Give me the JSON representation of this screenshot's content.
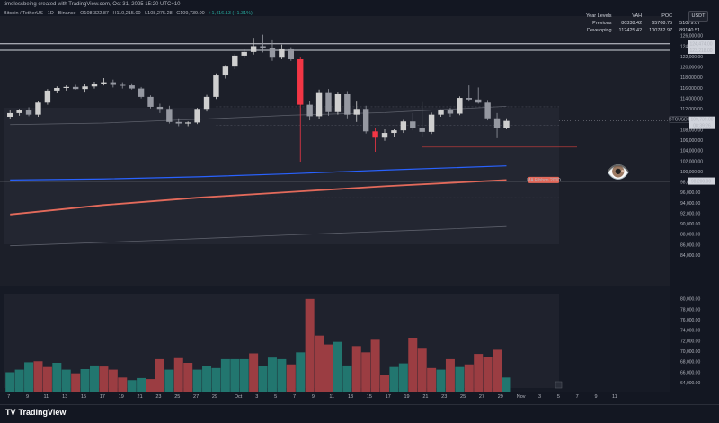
{
  "header": {
    "text": "timelessbeing created with TradingView.com, Oct 31, 2025 15:20 UTC+10"
  },
  "legend": {
    "symbol": "Bitcoin / TetherUS · 1D · Binance",
    "open": "O108,322.87",
    "high": "H110,215.00",
    "low": "L108,275.28",
    "close": "C109,739.00",
    "change": "+1,416.13 (+1.31%)"
  },
  "year_levels": {
    "headers": [
      "Year Levels",
      "VAH",
      "POC",
      "VAL"
    ],
    "rows": [
      [
        "Previous",
        "80338.42",
        "65708.75",
        "51079.07"
      ],
      [
        "Developing",
        "112425.42",
        "100782.97",
        "89140.51"
      ]
    ]
  },
  "currency_button": "USDT",
  "price_axis": {
    "ticks": [
      "126,000.00",
      "124,000.00",
      "122,000.00",
      "120,000.00",
      "118,000.00",
      "116,000.00",
      "114,000.00",
      "112,000.00",
      "110,000.00",
      "108,000.00",
      "106,000.00",
      "104,000.00",
      "102,000.00",
      "100,000.00",
      "98,000.00",
      "96,000.00",
      "94,000.00",
      "92,000.00",
      "90,000.00",
      "88,000.00",
      "86,000.00",
      "84,000.00"
    ],
    "level_labels": [
      {
        "text": "124,474.00",
        "price": 124474
      },
      {
        "text": "123,218.00",
        "price": 123218
      },
      {
        "text": "98,200.00",
        "price": 98200
      }
    ],
    "last_price_label": "BTCUSDT",
    "last_price_value": "109,739.00",
    "countdown": "08:39:26"
  },
  "volume_axis": {
    "ticks": [
      "80,000.00",
      "78,000.00",
      "76,000.00",
      "74,000.00",
      "72,000.00",
      "70,000.00",
      "68,000.00",
      "66,000.00",
      "64,000.00"
    ]
  },
  "x_axis": {
    "labels": [
      "7",
      "9",
      "11",
      "13",
      "15",
      "17",
      "19",
      "21",
      "23",
      "25",
      "27",
      "29",
      "Oct",
      "3",
      "5",
      "7",
      "9",
      "11",
      "13",
      "15",
      "17",
      "19",
      "21",
      "23",
      "25",
      "27",
      "29",
      "Nov",
      "3",
      "5",
      "7",
      "9",
      "11"
    ]
  },
  "ma_label": "MA Ribbon 200D",
  "colors": {
    "up": "#cfcfcf",
    "down_highlight": "#f23645",
    "vol_up": "#22766f",
    "vol_down": "#9b3d42",
    "ema": "#2962ff",
    "ma200": "#e36a5b"
  },
  "chart_data": {
    "type": "candlestick",
    "title": "Bitcoin / TetherUS · 1D · Binance",
    "ylim": [
      83000,
      127000
    ],
    "candles": [
      {
        "o": 110500,
        "h": 111700,
        "l": 110000,
        "c": 111200
      },
      {
        "o": 111200,
        "h": 112000,
        "l": 110700,
        "c": 111700
      },
      {
        "o": 111700,
        "h": 112300,
        "l": 110600,
        "c": 110900
      },
      {
        "o": 110900,
        "h": 113500,
        "l": 110500,
        "c": 113200
      },
      {
        "o": 113200,
        "h": 115800,
        "l": 112800,
        "c": 115500
      },
      {
        "o": 115500,
        "h": 116300,
        "l": 115000,
        "c": 116000
      },
      {
        "o": 116000,
        "h": 116500,
        "l": 115500,
        "c": 116200
      },
      {
        "o": 116200,
        "h": 116600,
        "l": 115700,
        "c": 115800
      },
      {
        "o": 115800,
        "h": 116700,
        "l": 115300,
        "c": 116300
      },
      {
        "o": 116300,
        "h": 117200,
        "l": 115900,
        "c": 116800
      },
      {
        "o": 116800,
        "h": 117900,
        "l": 116500,
        "c": 117100
      },
      {
        "o": 117100,
        "h": 117600,
        "l": 116100,
        "c": 116600
      },
      {
        "o": 116600,
        "h": 117100,
        "l": 115900,
        "c": 116500
      },
      {
        "o": 116500,
        "h": 116900,
        "l": 115700,
        "c": 115900
      },
      {
        "o": 115900,
        "h": 116200,
        "l": 114000,
        "c": 114300
      },
      {
        "o": 114300,
        "h": 114600,
        "l": 112100,
        "c": 112400
      },
      {
        "o": 112400,
        "h": 113000,
        "l": 111200,
        "c": 112000
      },
      {
        "o": 112000,
        "h": 112600,
        "l": 109200,
        "c": 109500
      },
      {
        "o": 109500,
        "h": 110200,
        "l": 108700,
        "c": 109200
      },
      {
        "o": 109200,
        "h": 109600,
        "l": 108700,
        "c": 109400
      },
      {
        "o": 109400,
        "h": 112200,
        "l": 109100,
        "c": 112000
      },
      {
        "o": 112000,
        "h": 114700,
        "l": 111500,
        "c": 114300
      },
      {
        "o": 114300,
        "h": 118800,
        "l": 113900,
        "c": 118400
      },
      {
        "o": 118400,
        "h": 120400,
        "l": 117800,
        "c": 120100
      },
      {
        "o": 120100,
        "h": 122500,
        "l": 119600,
        "c": 122200
      },
      {
        "o": 122200,
        "h": 123400,
        "l": 121700,
        "c": 122900
      },
      {
        "o": 122900,
        "h": 125600,
        "l": 122400,
        "c": 124000
      },
      {
        "o": 124000,
        "h": 126200,
        "l": 122800,
        "c": 123600
      },
      {
        "o": 123600,
        "h": 125300,
        "l": 121200,
        "c": 121800
      },
      {
        "o": 121800,
        "h": 124300,
        "l": 121500,
        "c": 123400
      },
      {
        "o": 123400,
        "h": 123800,
        "l": 121200,
        "c": 121500
      },
      {
        "o": 121500,
        "h": 122000,
        "l": 101900,
        "c": 112800
      },
      {
        "o": 112800,
        "h": 113500,
        "l": 109800,
        "c": 110600
      },
      {
        "o": 110600,
        "h": 115700,
        "l": 110100,
        "c": 115200
      },
      {
        "o": 115200,
        "h": 115800,
        "l": 110700,
        "c": 111400
      },
      {
        "o": 111400,
        "h": 115300,
        "l": 110900,
        "c": 114800
      },
      {
        "o": 114800,
        "h": 115400,
        "l": 110200,
        "c": 110900
      },
      {
        "o": 110900,
        "h": 113400,
        "l": 109500,
        "c": 112000
      },
      {
        "o": 112000,
        "h": 112600,
        "l": 107300,
        "c": 107700
      },
      {
        "o": 107700,
        "h": 108300,
        "l": 103800,
        "c": 106500
      },
      {
        "o": 106500,
        "h": 108100,
        "l": 105900,
        "c": 107400
      },
      {
        "o": 107400,
        "h": 108100,
        "l": 106600,
        "c": 107900
      },
      {
        "o": 107900,
        "h": 109900,
        "l": 107400,
        "c": 109600
      },
      {
        "o": 109600,
        "h": 111200,
        "l": 107900,
        "c": 108400
      },
      {
        "o": 108400,
        "h": 113300,
        "l": 106700,
        "c": 107600
      },
      {
        "o": 107600,
        "h": 111300,
        "l": 107200,
        "c": 110900
      },
      {
        "o": 110900,
        "h": 111900,
        "l": 110500,
        "c": 111700
      },
      {
        "o": 111700,
        "h": 112200,
        "l": 110500,
        "c": 111100
      },
      {
        "o": 111100,
        "h": 114400,
        "l": 110800,
        "c": 114100
      },
      {
        "o": 114100,
        "h": 116500,
        "l": 113400,
        "c": 113800
      },
      {
        "o": 113800,
        "h": 116100,
        "l": 113000,
        "c": 113200
      },
      {
        "o": 113200,
        "h": 113700,
        "l": 109800,
        "c": 110200
      },
      {
        "o": 110200,
        "h": 111200,
        "l": 106400,
        "c": 108300
      },
      {
        "o": 108300,
        "h": 110200,
        "l": 108100,
        "c": 109700
      }
    ],
    "volume": {
      "ylim": [
        63000,
        81000
      ],
      "values": [
        {
          "v": 66000,
          "up": true
        },
        {
          "v": 66500,
          "up": true
        },
        {
          "v": 67900,
          "up": true
        },
        {
          "v": 68100,
          "up": false
        },
        {
          "v": 67000,
          "up": false
        },
        {
          "v": 67800,
          "up": true
        },
        {
          "v": 66500,
          "up": true
        },
        {
          "v": 65800,
          "up": false
        },
        {
          "v": 66600,
          "up": true
        },
        {
          "v": 67300,
          "up": true
        },
        {
          "v": 67100,
          "up": false
        },
        {
          "v": 66500,
          "up": false
        },
        {
          "v": 65000,
          "up": false
        },
        {
          "v": 64500,
          "up": true
        },
        {
          "v": 64900,
          "up": true
        },
        {
          "v": 64700,
          "up": false
        },
        {
          "v": 68500,
          "up": false
        },
        {
          "v": 66500,
          "up": true
        },
        {
          "v": 68700,
          "up": false
        },
        {
          "v": 67800,
          "up": false
        },
        {
          "v": 66500,
          "up": true
        },
        {
          "v": 67200,
          "up": true
        },
        {
          "v": 66800,
          "up": true
        },
        {
          "v": 68500,
          "up": true
        },
        {
          "v": 68500,
          "up": true
        },
        {
          "v": 68500,
          "up": true
        },
        {
          "v": 69600,
          "up": false
        },
        {
          "v": 67200,
          "up": true
        },
        {
          "v": 68800,
          "up": true
        },
        {
          "v": 68500,
          "up": true
        },
        {
          "v": 67500,
          "up": false
        },
        {
          "v": 69800,
          "up": true
        },
        {
          "v": 80000,
          "up": false
        },
        {
          "v": 73000,
          "up": false
        },
        {
          "v": 71300,
          "up": false
        },
        {
          "v": 71800,
          "up": true
        },
        {
          "v": 67300,
          "up": true
        },
        {
          "v": 71000,
          "up": false
        },
        {
          "v": 69800,
          "up": false
        },
        {
          "v": 72200,
          "up": false
        },
        {
          "v": 65500,
          "up": false
        },
        {
          "v": 67000,
          "up": true
        },
        {
          "v": 67700,
          "up": true
        },
        {
          "v": 72600,
          "up": false
        },
        {
          "v": 70500,
          "up": false
        },
        {
          "v": 66800,
          "up": false
        },
        {
          "v": 66500,
          "up": true
        },
        {
          "v": 68500,
          "up": false
        },
        {
          "v": 67000,
          "up": true
        },
        {
          "v": 67500,
          "up": false
        },
        {
          "v": 69500,
          "up": false
        },
        {
          "v": 68900,
          "up": false
        },
        {
          "v": 70300,
          "up": false
        },
        {
          "v": 65000,
          "up": true
        }
      ]
    },
    "levels": [
      124474,
      123218,
      98200,
      104700
    ],
    "ema": [
      [
        0,
        109000
      ],
      [
        10,
        109300
      ],
      [
        20,
        110000
      ],
      [
        30,
        110800
      ],
      [
        40,
        111300
      ],
      [
        53,
        112500
      ]
    ],
    "blue_line": [
      [
        0,
        98400
      ],
      [
        10,
        98600
      ],
      [
        20,
        99000
      ],
      [
        30,
        99600
      ],
      [
        40,
        100300
      ],
      [
        53,
        101100
      ]
    ],
    "ma200": [
      [
        0,
        91800
      ],
      [
        10,
        93600
      ],
      [
        20,
        95000
      ],
      [
        30,
        96100
      ],
      [
        40,
        97200
      ],
      [
        53,
        98400
      ]
    ],
    "lower_line": [
      [
        0,
        85800
      ],
      [
        15,
        86800
      ],
      [
        30,
        87900
      ],
      [
        45,
        88900
      ],
      [
        53,
        89500
      ]
    ],
    "ma_band_start_index": 22
  }
}
